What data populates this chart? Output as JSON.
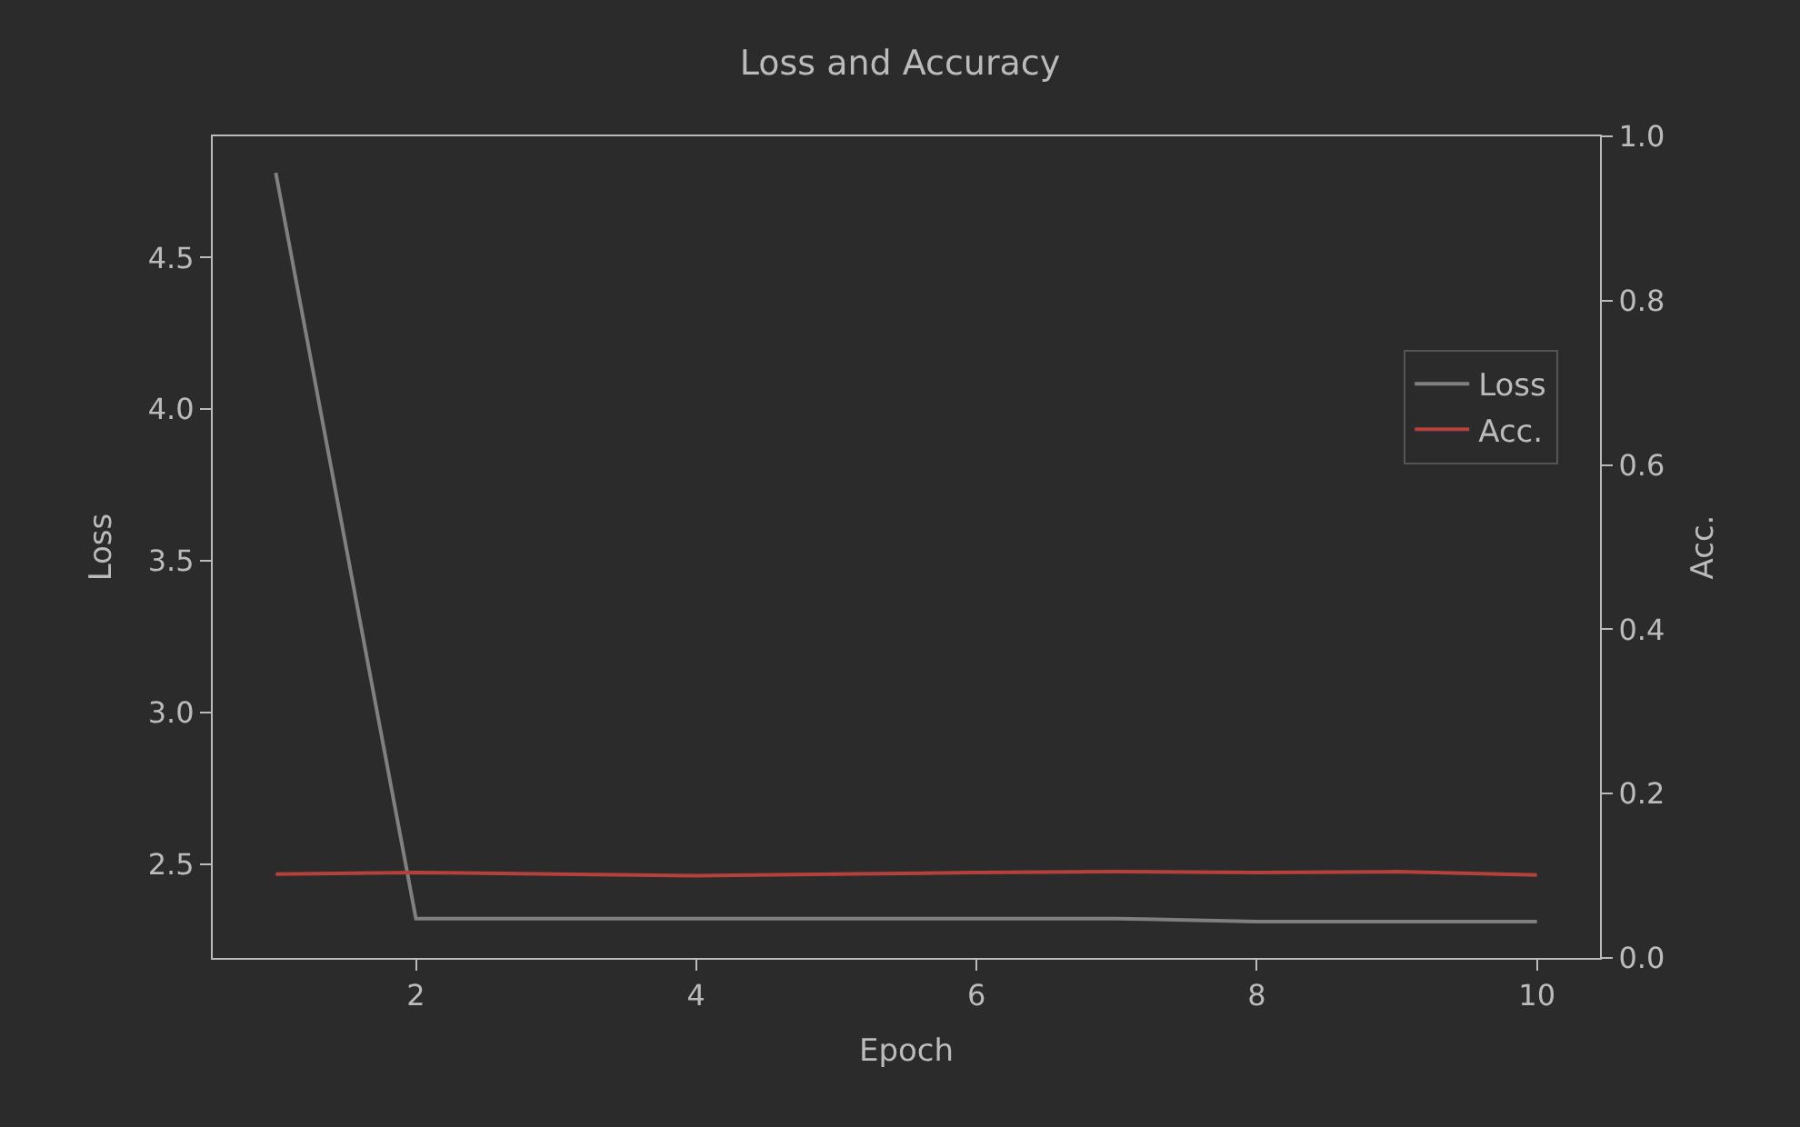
{
  "chart_data": {
    "type": "line",
    "title": "Loss and Accuracy",
    "xlabel": "Epoch",
    "ylabel": "Loss",
    "y2label": "Acc.",
    "x": [
      1,
      2,
      3,
      4,
      5,
      6,
      7,
      8,
      9,
      10
    ],
    "series": [
      {
        "name": "Loss",
        "color": "#808080",
        "values": [
          4.78,
          2.32,
          2.32,
          2.32,
          2.32,
          2.32,
          2.32,
          2.31,
          2.31,
          2.31
        ]
      },
      {
        "name": "Acc.",
        "color": "#b5413c",
        "axis": "y2",
        "values": [
          0.102,
          0.104,
          0.102,
          0.1,
          0.102,
          0.104,
          0.105,
          0.104,
          0.105,
          0.101
        ]
      }
    ],
    "xlim": [
      0.55,
      10.45
    ],
    "xticks": [
      2,
      4,
      6,
      8,
      10
    ],
    "ylim": [
      2.19,
      4.9
    ],
    "yticks": [
      2.5,
      {
        "value": 3,
        "label": "3.0"
      },
      3.5,
      {
        "value": 4,
        "label": "4.0"
      },
      4.5
    ],
    "y2lim": [
      0,
      1
    ],
    "y2ticks": [
      {
        "value": 0,
        "label": "0.0"
      },
      0.2,
      0.4,
      0.6,
      0.8,
      {
        "value": 1,
        "label": "1.0"
      }
    ],
    "grid": false,
    "legend": "right",
    "marker": "none",
    "line_style": "solid"
  }
}
